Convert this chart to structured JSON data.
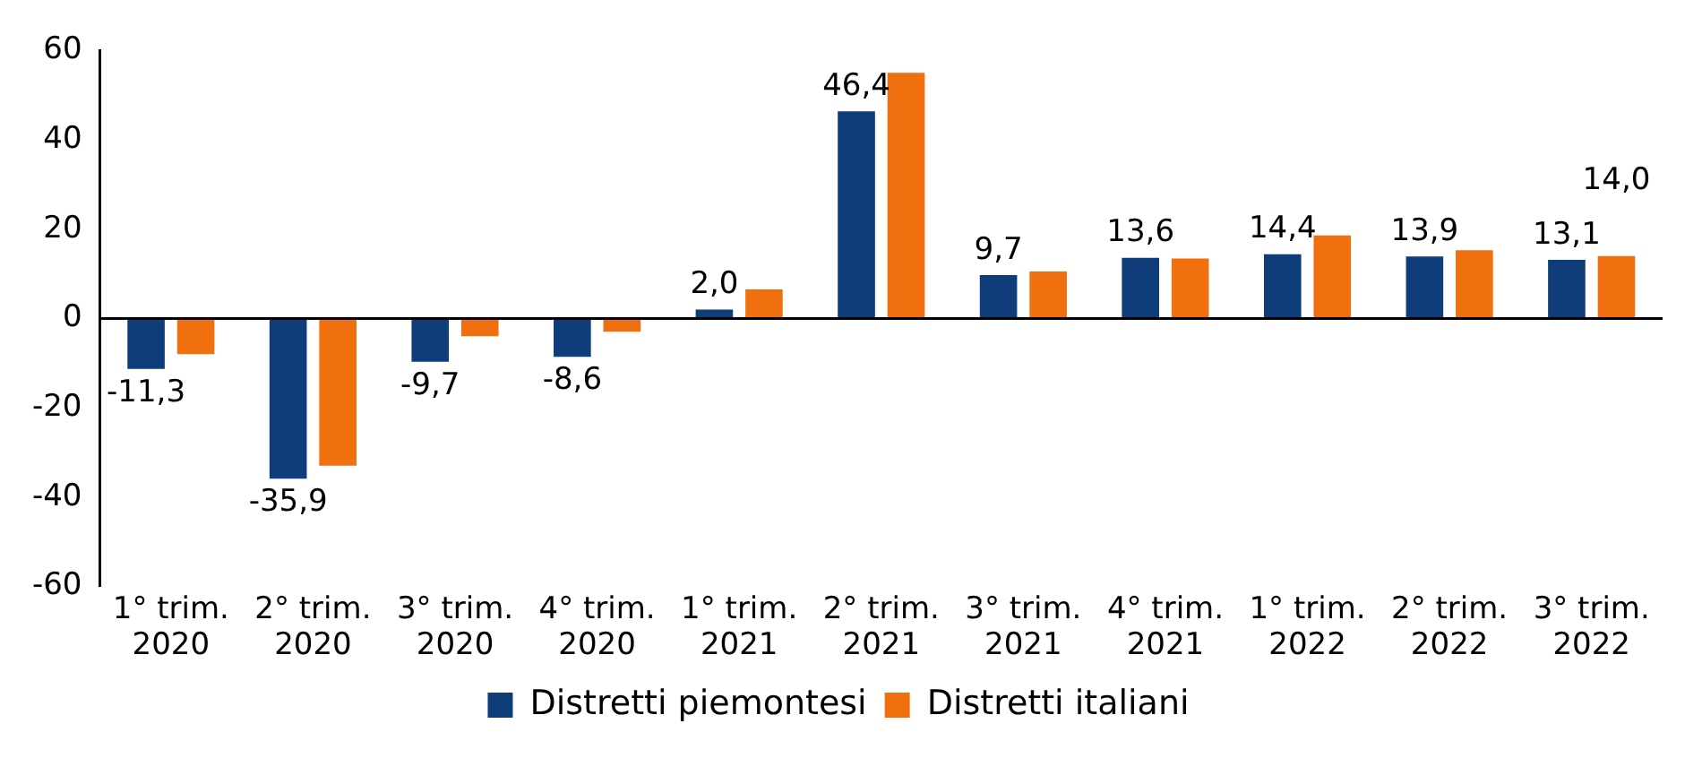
{
  "chart_data": {
    "type": "bar",
    "categories": [
      "1° trim. 2020",
      "2° trim. 2020",
      "3° trim. 2020",
      "4° trim. 2020",
      "1° trim. 2021",
      "2° trim. 2021",
      "3° trim. 2021",
      "4° trim. 2021",
      "1° trim. 2022",
      "2° trim. 2022",
      "3° trim. 2022"
    ],
    "series": [
      {
        "name": "Distretti piemontesi",
        "color": "#0f3d7a",
        "values": [
          -11.3,
          -35.9,
          -9.7,
          -8.6,
          2.0,
          46.4,
          9.7,
          13.6,
          14.4,
          13.9,
          13.1
        ],
        "value_labels": [
          "-11,3",
          "-35,9",
          "-9,7",
          "-8,6",
          "2,0",
          "46,4",
          "9,7",
          "13,6",
          "14,4",
          "13,9",
          "13,1"
        ]
      },
      {
        "name": "Distretti italiani",
        "color": "#f07010",
        "values": [
          -8,
          -33,
          -4,
          -3,
          6.5,
          55,
          10.5,
          13.4,
          18.6,
          15.3,
          14.0
        ],
        "value_labels": [
          null,
          null,
          null,
          null,
          null,
          null,
          null,
          null,
          null,
          null,
          "14,0"
        ]
      }
    ],
    "ylim": [
      -60,
      60
    ],
    "yticks": [
      -60,
      -40,
      -20,
      0,
      20,
      40,
      60
    ],
    "ref_lines": [
      {
        "axis": "y",
        "value": 0,
        "color": "#000000"
      }
    ],
    "grid": false,
    "legend": "bottom"
  }
}
